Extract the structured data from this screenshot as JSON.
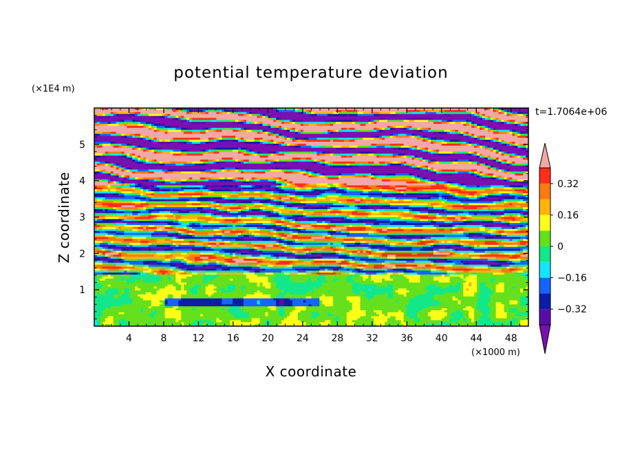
{
  "chart_data": {
    "type": "heatmap",
    "title": "potential temperature deviation",
    "xlabel": "X coordinate",
    "ylabel": "Z coordinate",
    "x_unit": "(×1000 m)",
    "y_unit": "(×1E4 m)",
    "time_label": "t=1.7064e+06",
    "xlim": [
      0,
      50
    ],
    "ylim": [
      0,
      6
    ],
    "x_ticks": [
      4,
      8,
      12,
      16,
      20,
      24,
      28,
      32,
      36,
      40,
      44,
      48
    ],
    "x_tick_labels": [
      "4",
      "8",
      "12",
      "16",
      "20",
      "24",
      "28",
      "32",
      "36",
      "40",
      "44",
      "48"
    ],
    "y_ticks": [
      1,
      2,
      3,
      4,
      5
    ],
    "y_tick_labels": [
      "1",
      "2",
      "3",
      "4",
      "5"
    ],
    "colorbar": {
      "colors": [
        "#7a10b0",
        "#5a0ca8",
        "#0a1ea8",
        "#1664ff",
        "#12e6ff",
        "#12e88a",
        "#66e01c",
        "#ffff1a",
        "#ffb40a",
        "#ff7a10",
        "#ff2e1a",
        "#f2a8a4"
      ],
      "levels": [
        -0.4,
        -0.32,
        -0.24,
        -0.16,
        -0.08,
        0,
        0.08,
        0.16,
        0.24,
        0.32,
        0.4
      ],
      "tick_values": [
        0.32,
        0.16,
        0,
        -0.16,
        -0.32
      ],
      "tick_labels": [
        "0.32",
        "0.16",
        "0",
        "−0.16",
        "−0.32"
      ],
      "extend": "both"
    },
    "field_description_bands": [
      {
        "z_range": [
          0,
          1.4
        ],
        "dominant_value": 0.02
      },
      {
        "z_range": [
          1.4,
          3.9
        ],
        "dominant_value": 0.0
      },
      {
        "z_range": [
          3.9,
          6.0
        ],
        "dominant_value": 0.45
      }
    ]
  }
}
